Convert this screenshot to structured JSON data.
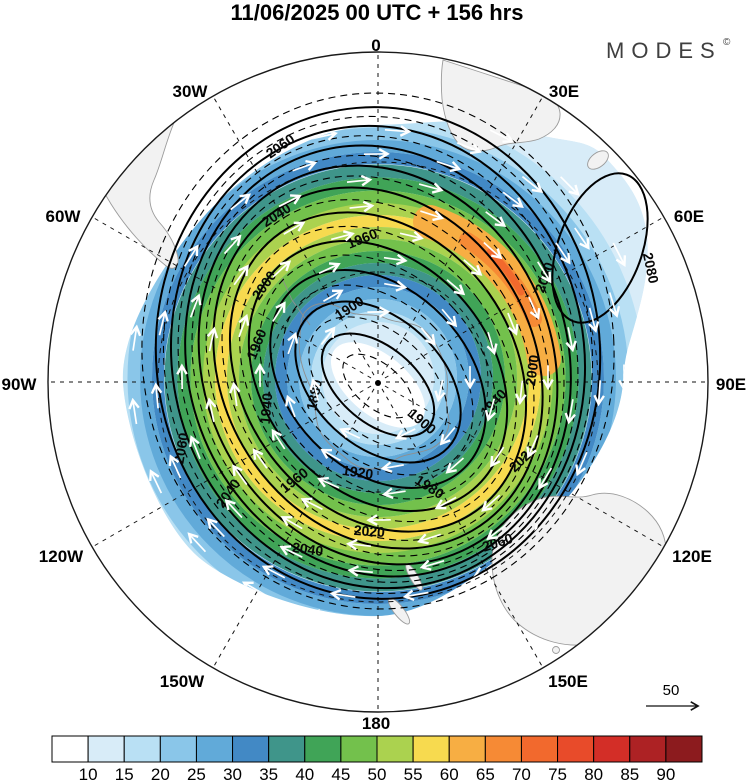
{
  "title": "11/06/2025  00 UTC  + 156 hrs",
  "logo": {
    "text": "MODES",
    "symbol": "©"
  },
  "map": {
    "longitude_labels": [
      "0",
      "30E",
      "60E",
      "90E",
      "120E",
      "150E",
      "180",
      "150W",
      "120W",
      "90W",
      "60W",
      "30W"
    ],
    "contour_labels": [
      "2060",
      "2040",
      "1960",
      "2000",
      "1900",
      "1880",
      "1940",
      "1960",
      "2060",
      "2040",
      "1900",
      "1940",
      "2020",
      "2000",
      "2060",
      "2080",
      "1920",
      "1960",
      "1980",
      "2020",
      "2040",
      "2060"
    ],
    "reference_arrow_label": "50"
  },
  "colorbar": {
    "tick_labels": [
      "10",
      "15",
      "20",
      "25",
      "30",
      "35",
      "40",
      "45",
      "50",
      "55",
      "60",
      "65",
      "70",
      "75",
      "80",
      "85",
      "90"
    ],
    "colors": [
      "#ffffff",
      "#d8ecf8",
      "#b9e0f4",
      "#8ac6e9",
      "#61aad9",
      "#4289c5",
      "#3f958a",
      "#40a457",
      "#73c14c",
      "#abd24f",
      "#f7da4f",
      "#f7ae43",
      "#f68a35",
      "#f2692d",
      "#e84b2a",
      "#d32e27",
      "#ad2224",
      "#8c1b1e"
    ]
  },
  "chart_data": {
    "type": "heatmap",
    "title": "11/06/2025 00 UTC + 156 hrs",
    "watermark": "MODES©",
    "projection_labels": [
      "0",
      "30E",
      "60E",
      "90E",
      "120E",
      "150E",
      "180",
      "150W",
      "120W",
      "90W",
      "60W",
      "30W"
    ],
    "contour_levels_labeled": [
      1880,
      1900,
      1920,
      1940,
      1960,
      1980,
      2000,
      2020,
      2040,
      2060,
      2080
    ],
    "contour_interval_solid": 20,
    "contour_interval_dashed": 10,
    "field_minimum_label_center": 1880,
    "field_maximum_label_northeast": 2080,
    "shading_bin_edges": [
      10,
      15,
      20,
      25,
      30,
      35,
      40,
      45,
      50,
      55,
      60,
      65,
      70,
      75,
      80,
      85,
      90
    ],
    "shading_colors": [
      "#ffffff",
      "#d8ecf8",
      "#b9e0f4",
      "#8ac6e9",
      "#61aad9",
      "#4289c5",
      "#3f958a",
      "#40a457",
      "#73c14c",
      "#abd24f",
      "#f7da4f",
      "#f7ae43",
      "#f68a35",
      "#f2692d",
      "#e84b2a",
      "#d32e27",
      "#ad2224",
      "#8c1b1e"
    ],
    "reference_vector_value": 50,
    "center_pole_marker": true,
    "legend_position": "bottom"
  }
}
